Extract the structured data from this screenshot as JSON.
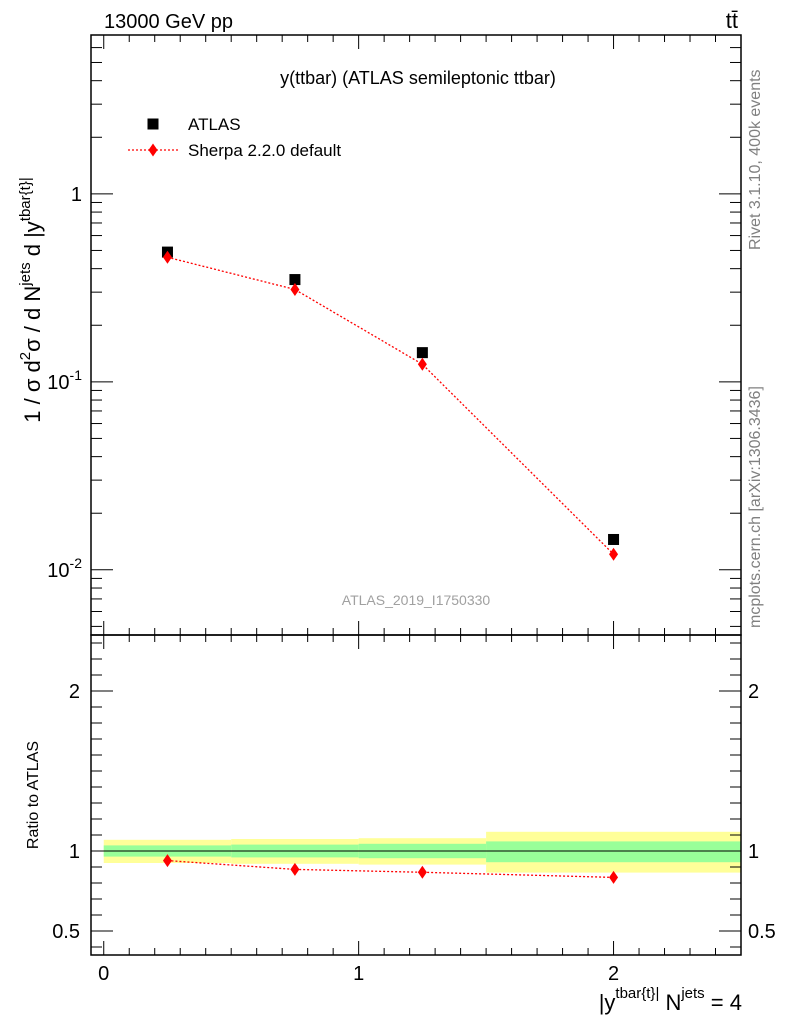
{
  "header": {
    "left_label": "13000 GeV pp",
    "right_label": "tt̄"
  },
  "side_labels": {
    "rivet": "Rivet 3.1.10,  400k events",
    "mcplots": "mcplots.cern.ch [arXiv:1306.3436]"
  },
  "chart_data": [
    {
      "type": "scatter",
      "panel": "main",
      "title": "y(ttbar) (ATLAS semileptonic ttbar)",
      "watermark": "ATLAS_2019_I1750330",
      "ylabel": "1 / σ d²σ / d N^jets d |y^tbar{t}|",
      "yscale": "log",
      "ylim": [
        0.0045,
        7.0
      ],
      "xlim": [
        -0.05,
        2.5
      ],
      "ytick_labels": [
        "1",
        "10^-1",
        "10^-2"
      ],
      "legend_position": "top-left",
      "series": [
        {
          "name": "ATLAS",
          "marker": "square",
          "color": "#000000",
          "x": [
            0.25,
            0.75,
            1.25,
            2.0
          ],
          "y": [
            0.49,
            0.35,
            0.143,
            0.0145
          ]
        },
        {
          "name": "Sherpa 2.2.0 default",
          "marker": "diamond",
          "line": "dotted",
          "color": "#ff0000",
          "x": [
            0.25,
            0.75,
            1.25,
            2.0
          ],
          "y": [
            0.46,
            0.31,
            0.124,
            0.0121
          ]
        }
      ]
    },
    {
      "type": "scatter",
      "panel": "ratio",
      "ylabel": "Ratio to ATLAS",
      "xlabel": "|y^tbar{t}| N^jets = 4",
      "ylim": [
        0.35,
        2.35
      ],
      "xlim": [
        -0.05,
        2.5
      ],
      "xtick_labels": [
        "0",
        "1",
        "2"
      ],
      "ytick_labels": [
        "0.5",
        "1",
        "2"
      ],
      "bins": [
        {
          "xlo": 0.0,
          "xhi": 0.5,
          "stat_lo": 0.965,
          "stat_hi": 1.035,
          "tot_lo": 0.925,
          "tot_hi": 1.07
        },
        {
          "xlo": 0.5,
          "xhi": 1.0,
          "stat_lo": 0.96,
          "stat_hi": 1.04,
          "tot_lo": 0.92,
          "tot_hi": 1.075
        },
        {
          "xlo": 1.0,
          "xhi": 1.5,
          "stat_lo": 0.955,
          "stat_hi": 1.045,
          "tot_lo": 0.915,
          "tot_hi": 1.08
        },
        {
          "xlo": 1.5,
          "xhi": 2.5,
          "stat_lo": 0.93,
          "stat_hi": 1.06,
          "tot_lo": 0.865,
          "tot_hi": 1.12
        }
      ],
      "band_colors": {
        "stat": "#99ff99",
        "total": "#ffff99"
      },
      "series": [
        {
          "name": "Sherpa 2.2.0 default",
          "marker": "diamond",
          "line": "dotted",
          "color": "#ff0000",
          "x": [
            0.25,
            0.75,
            1.25,
            2.0
          ],
          "y": [
            0.94,
            0.885,
            0.867,
            0.835
          ]
        }
      ]
    }
  ]
}
